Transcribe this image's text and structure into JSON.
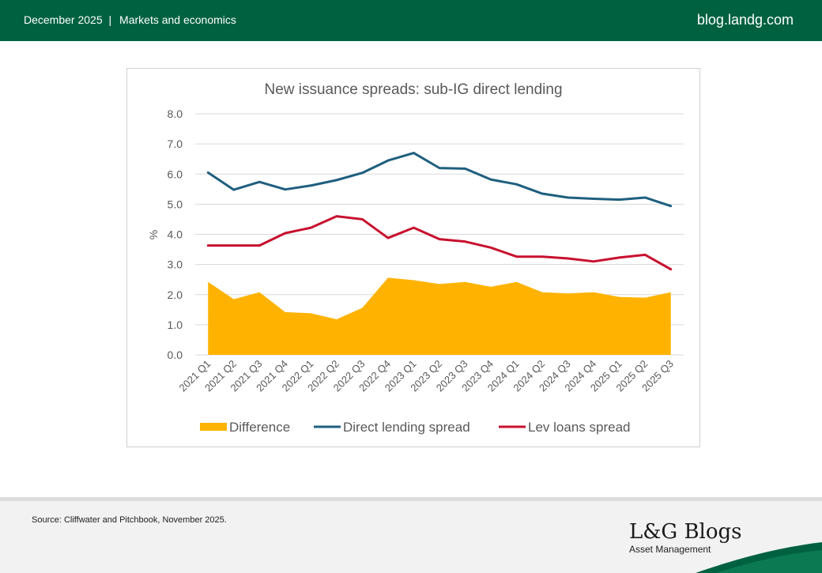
{
  "header": {
    "date": "December 2025",
    "separator": "|",
    "category": "Markets and economics",
    "site": "blog.landg.com"
  },
  "chart_data": {
    "type": "line",
    "title": "New issuance spreads: sub-IG direct lending",
    "ylabel": "%",
    "xlabel": "",
    "ylim": [
      0,
      8
    ],
    "yticks": [
      "0.0",
      "1.0",
      "2.0",
      "3.0",
      "4.0",
      "5.0",
      "6.0",
      "7.0",
      "8.0"
    ],
    "grid": true,
    "legend_position": "bottom",
    "categories": [
      "2021 Q1",
      "2021 Q2",
      "2021 Q3",
      "2021 Q4",
      "2022 Q1",
      "2022 Q2",
      "2022 Q3",
      "2022 Q4",
      "2023 Q1",
      "2023 Q2",
      "2023 Q3",
      "2023 Q4",
      "2024 Q1",
      "2024 Q2",
      "2024 Q3",
      "2024 Q4",
      "2025 Q1",
      "2025 Q2",
      "2025 Q3"
    ],
    "series": [
      {
        "name": "Difference",
        "kind": "area",
        "color": "#FFB300",
        "values": [
          2.42,
          1.85,
          2.08,
          1.42,
          1.38,
          1.18,
          1.56,
          2.56,
          2.48,
          2.35,
          2.42,
          2.26,
          2.42,
          2.08,
          2.04,
          2.08,
          1.92,
          1.9,
          2.08
        ]
      },
      {
        "name": "Direct lending spread",
        "kind": "line",
        "color": "#1F5F7F",
        "values": [
          6.05,
          5.48,
          5.74,
          5.49,
          5.62,
          5.8,
          6.04,
          6.45,
          6.7,
          6.2,
          6.18,
          5.82,
          5.66,
          5.35,
          5.22,
          5.18,
          5.15,
          5.22,
          4.94
        ]
      },
      {
        "name": "Lev loans spread",
        "kind": "line",
        "color": "#C8102E",
        "values": [
          3.63,
          3.63,
          3.63,
          4.04,
          4.22,
          4.6,
          4.5,
          3.88,
          4.22,
          3.84,
          3.76,
          3.56,
          3.26,
          3.26,
          3.2,
          3.1,
          3.23,
          3.32,
          2.84
        ]
      }
    ]
  },
  "footer": {
    "source": "Source: Cliffwater and Pitchbook, November 2025.",
    "logo_text": "L&G Blogs",
    "logo_sub": "Asset Management"
  },
  "colors": {
    "brand_green": "#006140",
    "difference": "#FFB300",
    "direct_lending": "#1F5F7F",
    "lev_loans": "#C8102E"
  }
}
